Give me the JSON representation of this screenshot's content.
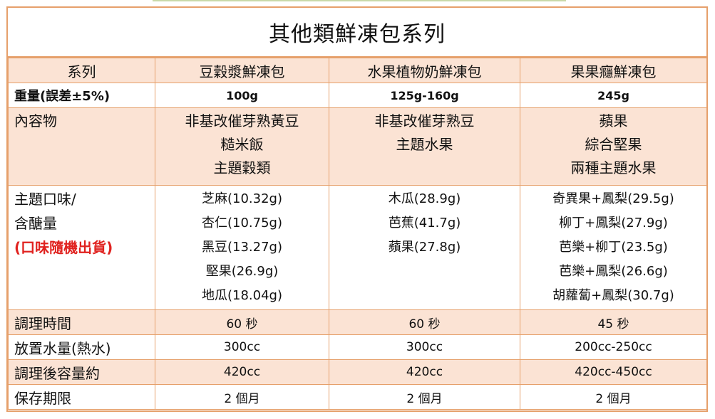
{
  "title": "其他類鮮凍包系列",
  "header": {
    "label": "系列",
    "cols": [
      "豆穀漿鮮凍包",
      "水果植物奶鮮凍包",
      "果果癮鮮凍包"
    ]
  },
  "weight": {
    "label": "重量(誤差±5%)",
    "cols": [
      "100g",
      "125g-160g",
      "245g"
    ]
  },
  "contents": {
    "label": "內容物",
    "cols": [
      [
        "非基改催芽熟黃豆",
        "糙米飯",
        "主題穀類"
      ],
      [
        "非基改催芽熟豆",
        "主題水果"
      ],
      [
        "蘋果",
        "綜合堅果",
        "兩種主題水果"
      ]
    ]
  },
  "flavor": {
    "label_lines": [
      "主題口味/",
      "含醣量",
      "(口味隨機出貨)"
    ],
    "cols": [
      [
        "芝麻(10.32g)",
        "杏仁(10.75g)",
        "黑豆(13.27g)",
        "堅果(26.9g)",
        "地瓜(18.04g)"
      ],
      [
        "木瓜(28.9g)",
        "芭蕉(41.7g)",
        "蘋果(27.8g)"
      ],
      [
        "奇異果+鳳梨(29.5g)",
        "柳丁+鳳梨(27.9g)",
        "芭樂+柳丁(23.5g)",
        "芭樂+鳳梨(26.6g)",
        "胡蘿蔔+鳳梨(30.7g)"
      ]
    ]
  },
  "cook_time": {
    "label": "調理時間",
    "cols": [
      "60 秒",
      "60 秒",
      "45 秒"
    ]
  },
  "water": {
    "label": "放置水量(熱水)",
    "cols": [
      "300cc",
      "300cc",
      "200cc-250cc"
    ]
  },
  "volume": {
    "label": "調理後容量約",
    "cols": [
      "420cc",
      "420cc",
      "420cc-450cc"
    ]
  },
  "shelf": {
    "label": "保存期限",
    "cols": [
      "2 個月",
      "2 個月",
      "2 個月"
    ]
  },
  "colors": {
    "border": "#e6a06b",
    "shade": "#fbe3d4",
    "accent_red": "#e0221f"
  }
}
